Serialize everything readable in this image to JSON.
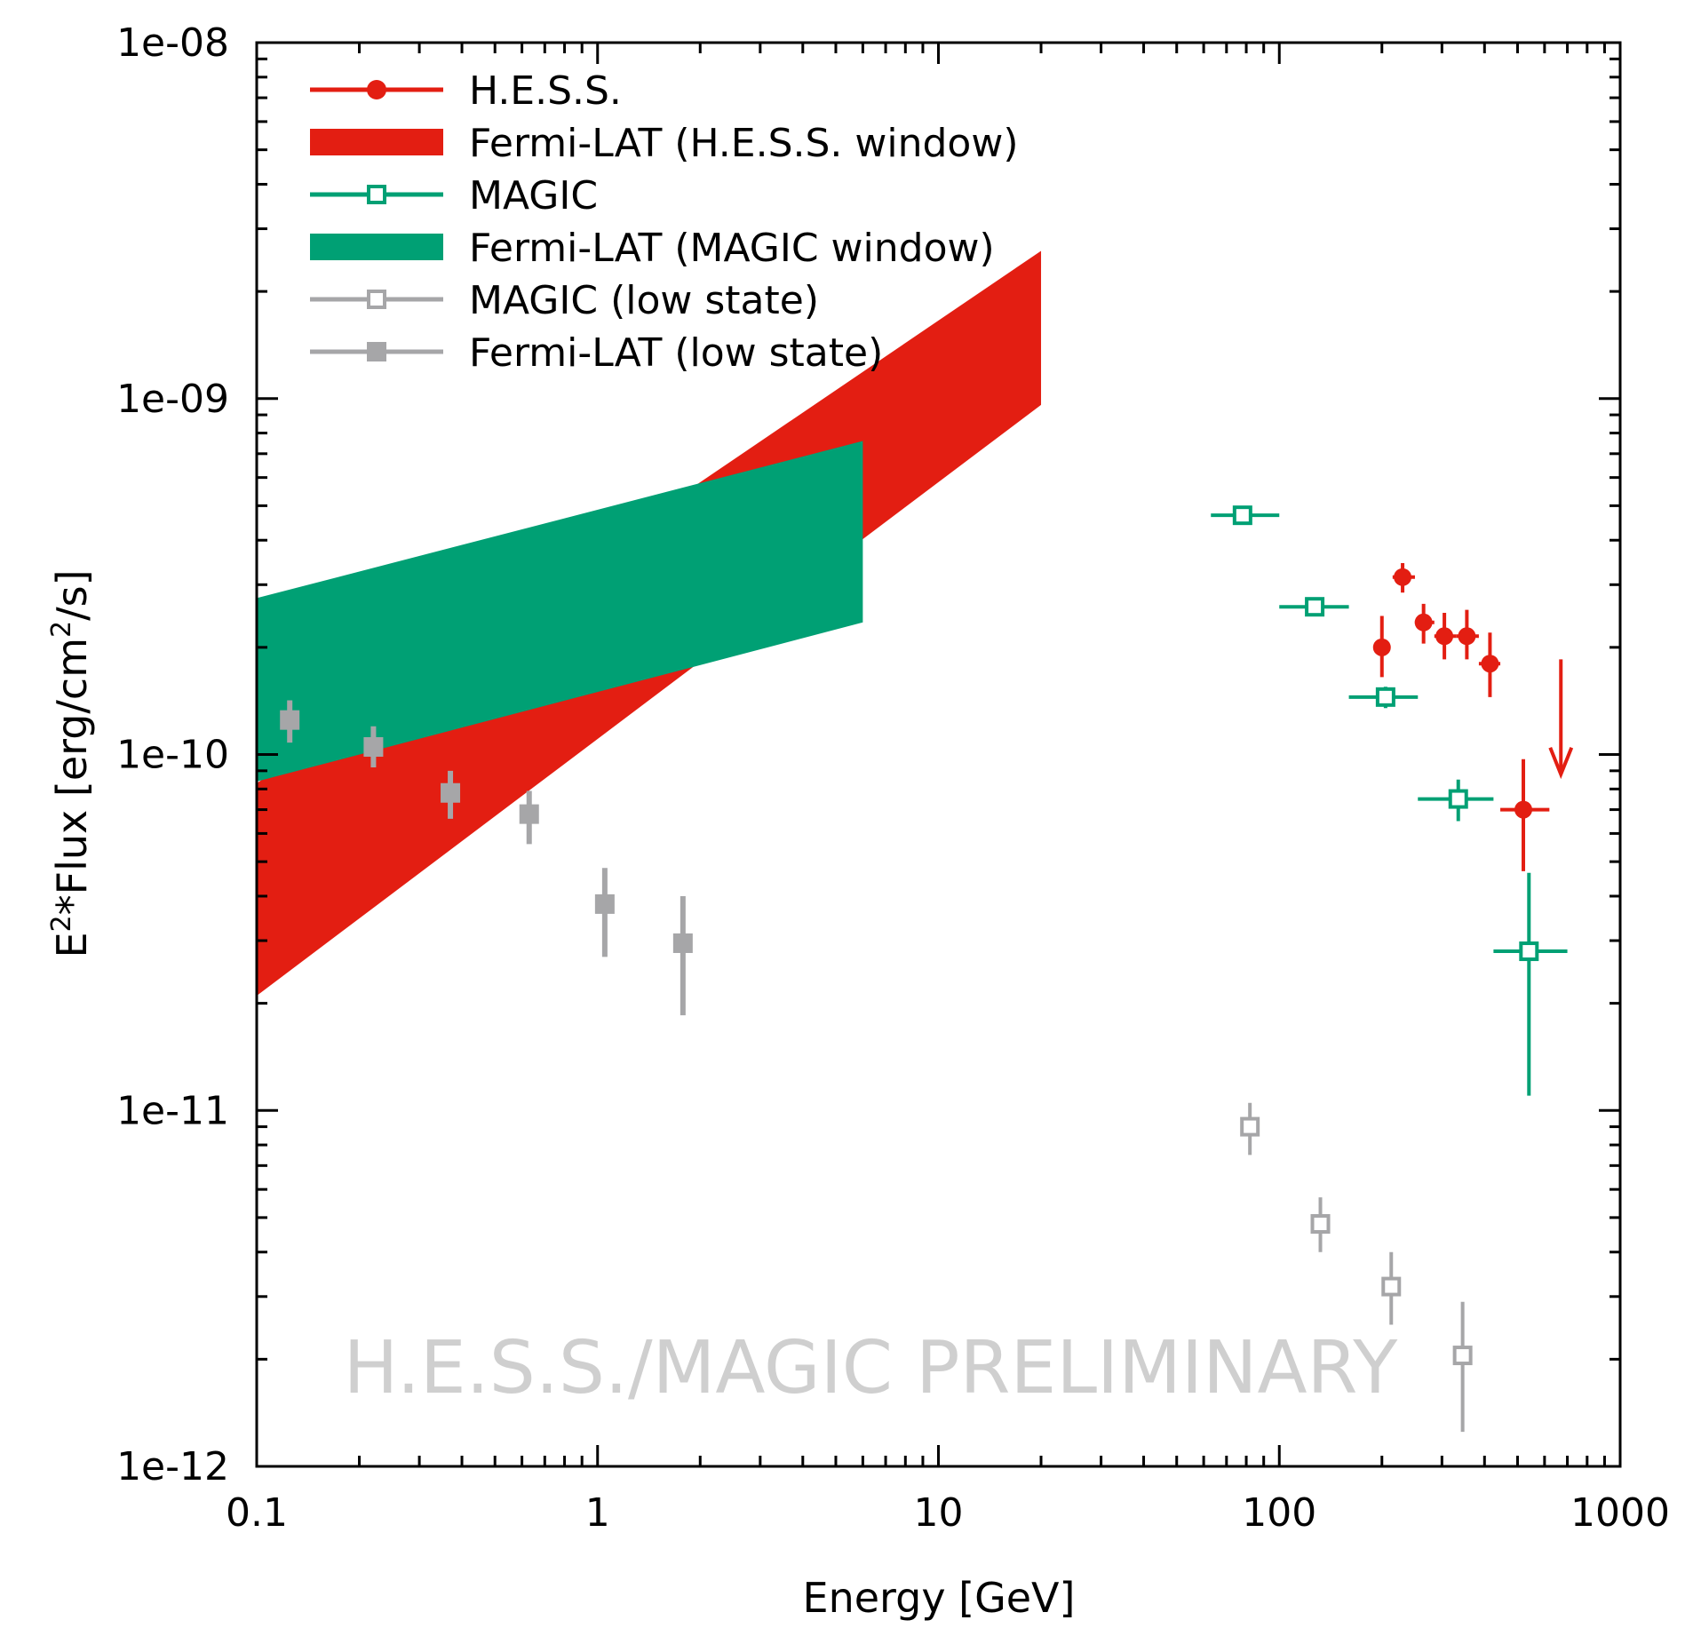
{
  "chart_data": {
    "type": "scatter",
    "scale": {
      "x": "log",
      "y": "log"
    },
    "xlim": [
      0.1,
      1000
    ],
    "ylim": [
      1e-12,
      1e-08
    ],
    "xlabel": "Energy [GeV]",
    "ylabel": {
      "base": "E",
      "sup1": "2",
      "mid": "*Flux [erg/cm",
      "sup2": "2",
      "end": "/s]"
    },
    "watermark": "H.E.S.S./MAGIC PRELIMINARY",
    "x_ticks": [
      {
        "value": 0.1,
        "label": "0.1"
      },
      {
        "value": 1,
        "label": "1"
      },
      {
        "value": 10,
        "label": "10"
      },
      {
        "value": 100,
        "label": "100"
      },
      {
        "value": 1000,
        "label": "1000"
      }
    ],
    "y_ticks": [
      {
        "value": 1e-12,
        "label": "1e-12"
      },
      {
        "value": 1e-11,
        "label": "1e-11"
      },
      {
        "value": 1e-10,
        "label": "1e-10"
      },
      {
        "value": 1e-09,
        "label": "1e-09"
      },
      {
        "value": 1e-08,
        "label": "1e-08"
      }
    ],
    "colors": {
      "hess": "#e31e12",
      "magic": "#00a074",
      "gray": "#a6a6a8",
      "watermark": "#cfcfcf"
    },
    "bands": [
      {
        "name": "Fermi-LAT (H.E.S.S. window)",
        "color": "#e31e12",
        "x_range": [
          0.1,
          20
        ],
        "upper": {
          "at_min": 8.3e-11,
          "at_max": 2.6e-09
        },
        "lower": {
          "at_min": 2.1e-11,
          "at_max": 9.6e-10
        }
      },
      {
        "name": "Fermi-LAT (MAGIC window)",
        "color": "#00a074",
        "x_range": [
          0.1,
          6
        ],
        "upper": {
          "at_min": 2.75e-10,
          "at_max": 7.6e-10
        },
        "lower": {
          "at_min": 8.4e-11,
          "at_max": 2.35e-10
        }
      }
    ],
    "series": [
      {
        "name": "H.E.S.S.",
        "marker": "circle",
        "color": "#e31e12",
        "points": [
          {
            "x": 200,
            "y": 2e-10,
            "xlo": 190,
            "xhi": 210,
            "ylo": 1.65e-10,
            "yhi": 2.45e-10
          },
          {
            "x": 230,
            "y": 3.15e-10,
            "xlo": 215,
            "xhi": 250,
            "ylo": 2.85e-10,
            "yhi": 3.45e-10
          },
          {
            "x": 265,
            "y": 2.35e-10,
            "xlo": 250,
            "xhi": 285,
            "ylo": 2.05e-10,
            "yhi": 2.65e-10
          },
          {
            "x": 305,
            "y": 2.15e-10,
            "xlo": 285,
            "xhi": 330,
            "ylo": 1.85e-10,
            "yhi": 2.5e-10
          },
          {
            "x": 355,
            "y": 2.15e-10,
            "xlo": 330,
            "xhi": 385,
            "ylo": 1.85e-10,
            "yhi": 2.55e-10
          },
          {
            "x": 415,
            "y": 1.8e-10,
            "xlo": 385,
            "xhi": 445,
            "ylo": 1.45e-10,
            "yhi": 2.2e-10
          },
          {
            "x": 520,
            "y": 7e-11,
            "xlo": 445,
            "xhi": 620,
            "ylo": 4.7e-11,
            "yhi": 9.7e-11
          }
        ]
      },
      {
        "name": "MAGIC",
        "marker": "open-square",
        "color": "#00a074",
        "points": [
          {
            "x": 78,
            "y": 4.7e-10,
            "xlo": 63,
            "xhi": 100,
            "ylo": 4.45e-10,
            "yhi": 4.95e-10
          },
          {
            "x": 127,
            "y": 2.6e-10,
            "xlo": 100,
            "xhi": 160,
            "ylo": 2.45e-10,
            "yhi": 2.75e-10
          },
          {
            "x": 205,
            "y": 1.45e-10,
            "xlo": 160,
            "xhi": 255,
            "ylo": 1.35e-10,
            "yhi": 1.55e-10
          },
          {
            "x": 335,
            "y": 7.5e-11,
            "xlo": 255,
            "xhi": 425,
            "ylo": 6.5e-11,
            "yhi": 8.5e-11
          },
          {
            "x": 540,
            "y": 2.8e-11,
            "xlo": 425,
            "xhi": 700,
            "ylo": 1.1e-11,
            "yhi": 4.65e-11
          }
        ]
      },
      {
        "name": "MAGIC (low state)",
        "marker": "open-square",
        "color": "#a6a6a8",
        "points": [
          {
            "x": 82,
            "y": 9e-12,
            "ylo": 7.5e-12,
            "yhi": 1.05e-11
          },
          {
            "x": 132,
            "y": 4.8e-12,
            "ylo": 4e-12,
            "yhi": 5.7e-12
          },
          {
            "x": 213,
            "y": 3.2e-12,
            "ylo": 2.5e-12,
            "yhi": 4e-12
          },
          {
            "x": 345,
            "y": 2.05e-12,
            "ylo": 1.25e-12,
            "yhi": 2.9e-12
          }
        ]
      },
      {
        "name": "Fermi-LAT (low state)",
        "marker": "filled-square",
        "color": "#a6a6a8",
        "points": [
          {
            "x": 0.125,
            "y": 1.25e-10,
            "ylo": 1.08e-10,
            "yhi": 1.42e-10
          },
          {
            "x": 0.22,
            "y": 1.05e-10,
            "ylo": 9.2e-11,
            "yhi": 1.2e-10
          },
          {
            "x": 0.37,
            "y": 7.8e-11,
            "ylo": 6.6e-11,
            "yhi": 9e-11
          },
          {
            "x": 0.63,
            "y": 6.8e-11,
            "ylo": 5.6e-11,
            "yhi": 7.9e-11
          },
          {
            "x": 1.05,
            "y": 3.8e-11,
            "ylo": 2.7e-11,
            "yhi": 4.8e-11
          },
          {
            "x": 1.78,
            "y": 2.95e-11,
            "ylo": 1.85e-11,
            "yhi": 4e-11
          }
        ]
      }
    ],
    "upper_limits": [
      {
        "series": "H.E.S.S.",
        "x": 670,
        "y_from": 1.85e-10,
        "y_to": 8.8e-11,
        "color": "#e31e12"
      }
    ],
    "legend": {
      "position": "top-left",
      "entries": [
        {
          "label": "H.E.S.S.",
          "kind": "line-circle",
          "color": "#e31e12"
        },
        {
          "label": "Fermi-LAT (H.E.S.S. window)",
          "kind": "band",
          "color": "#e31e12"
        },
        {
          "label": "MAGIC",
          "kind": "line-open-square",
          "color": "#00a074"
        },
        {
          "label": "Fermi-LAT (MAGIC window)",
          "kind": "band",
          "color": "#00a074"
        },
        {
          "label": "MAGIC (low state)",
          "kind": "line-open-square",
          "color": "#a6a6a8"
        },
        {
          "label": "Fermi-LAT (low state)",
          "kind": "line-filled-square",
          "color": "#a6a6a8"
        }
      ]
    }
  }
}
